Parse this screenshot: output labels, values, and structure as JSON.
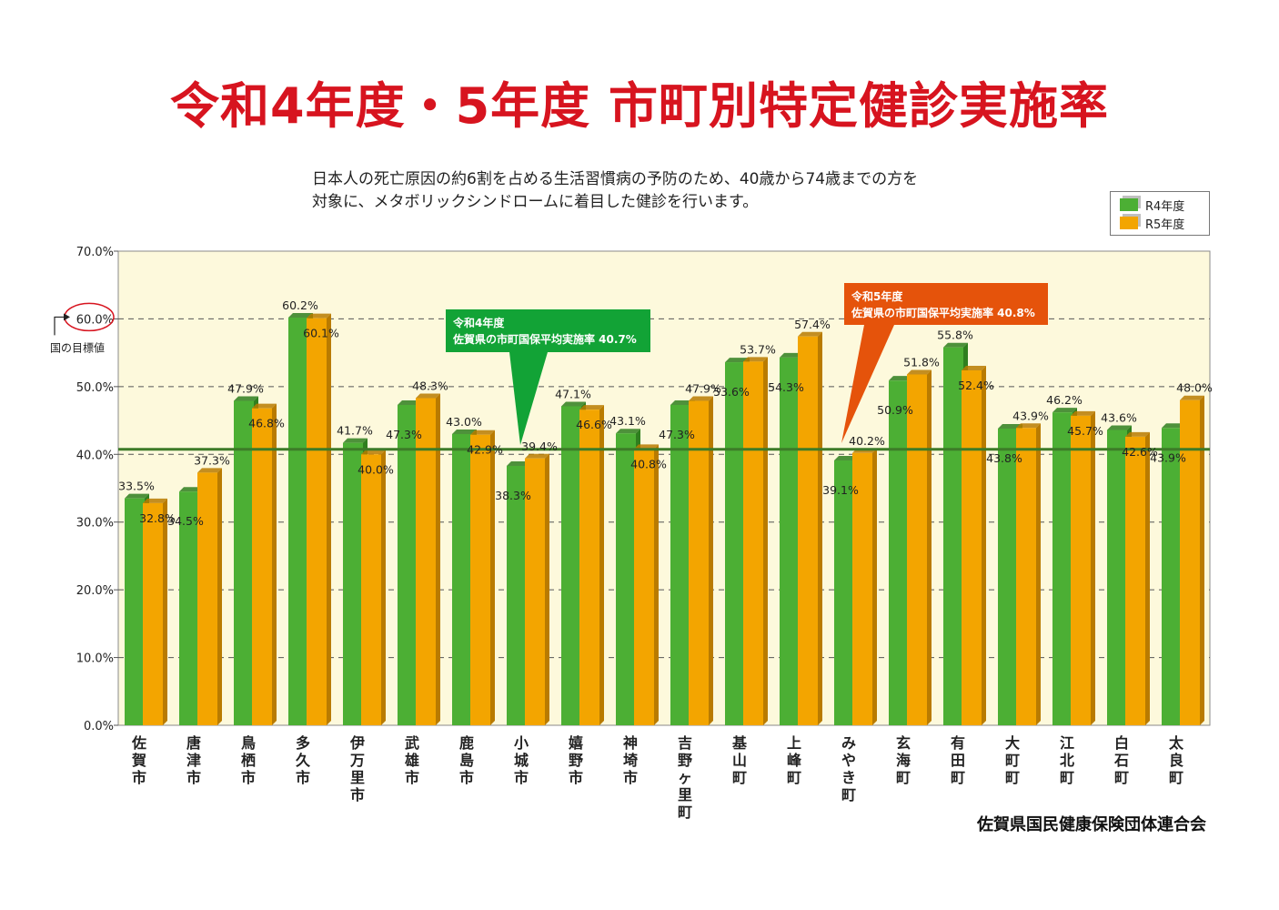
{
  "title": "令和4年度・5年度 市町別特定健診実施率",
  "description": [
    "日本人の死亡原因の約6割を占める生活習慣病の予防のため、40歳から74歳までの方を",
    "対象に、メタボリックシンドロームに着目した健診を行います。"
  ],
  "source": "佐賀県国民健康保険団体連合会",
  "target_label": "国の目標値",
  "target_value": 60.0,
  "target_value_text": "60.0%",
  "callouts": [
    {
      "line1": "令和4年度",
      "line2": "佐賀県の市町国保平均実施率 40.7%",
      "color": "#12a336",
      "value": 40.7
    },
    {
      "line1": "令和5年度",
      "line2": "佐賀県の市町国保平均実施率 40.8%",
      "color": "#e5530b",
      "value": 40.8
    }
  ],
  "colors": {
    "r4": "#4caf34",
    "r5": "#f3a500",
    "plot_bg": "#fdf9dc",
    "avg_line": "#3d7b28",
    "title": "#d7141f"
  },
  "chart_data": {
    "type": "bar",
    "ylim": [
      0,
      70
    ],
    "yticks": [
      "0.0%",
      "10.0%",
      "20.0%",
      "30.0%",
      "40.0%",
      "50.0%",
      "60.0%",
      "70.0%"
    ],
    "categories": [
      "佐賀市",
      "唐津市",
      "鳥栖市",
      "多久市",
      "伊万里市",
      "武雄市",
      "鹿島市",
      "小城市",
      "嬉野市",
      "神埼市",
      "吉野ヶ里町",
      "基山町",
      "上峰町",
      "みやき町",
      "玄海町",
      "有田町",
      "大町町",
      "江北町",
      "白石町",
      "太良町"
    ],
    "series": [
      {
        "name": "R4年度",
        "values": [
          33.5,
          34.5,
          47.9,
          60.2,
          41.7,
          47.3,
          43.0,
          38.3,
          47.1,
          43.1,
          47.3,
          53.6,
          54.3,
          39.1,
          50.9,
          55.8,
          43.8,
          46.2,
          43.6,
          43.9
        ]
      },
      {
        "name": "R5年度",
        "values": [
          32.8,
          37.3,
          46.8,
          60.1,
          40.0,
          48.3,
          42.9,
          39.4,
          46.6,
          40.8,
          47.9,
          53.7,
          57.4,
          40.2,
          51.8,
          52.4,
          43.9,
          45.7,
          42.6,
          48.0
        ]
      }
    ],
    "value_labels": {
      "r4": [
        "33.5%",
        "34.5%",
        "47.9%",
        "60.2%",
        "41.7%",
        "47.3%",
        "43.0%",
        "38.3%",
        "47.1%",
        "43.1%",
        "47.3%",
        "53.6%",
        "54.3%",
        "39.1%",
        "50.9%",
        "55.8%",
        "43.8%",
        "46.2%",
        "43.6%",
        "43.9%"
      ],
      "r5": [
        "32.8%",
        "37.3%",
        "46.8%",
        "60.1%",
        "40.0%",
        "48.3%",
        "42.9%",
        "39.4%",
        "46.6%",
        "40.8%",
        "47.9%",
        "53.7%",
        "57.4%",
        "40.2%",
        "51.8%",
        "52.4%",
        "43.9%",
        "45.7%",
        "42.6%",
        "48.0%"
      ]
    },
    "legend": [
      "R4年度",
      "R5年度"
    ],
    "grid": true,
    "legend_position": "top-right"
  }
}
